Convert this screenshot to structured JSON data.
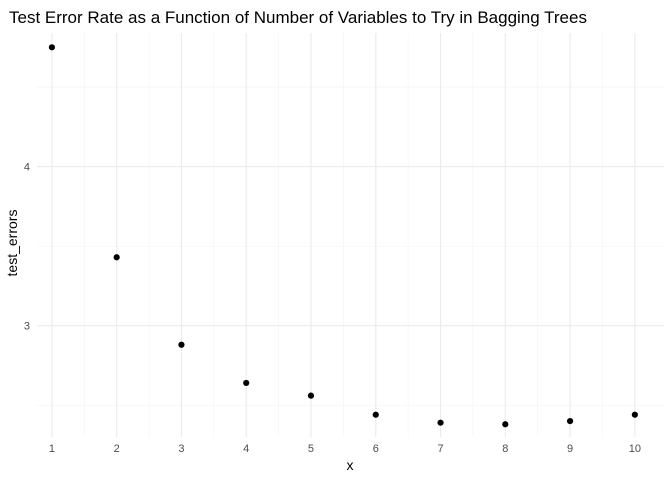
{
  "chart_data": {
    "type": "scatter",
    "title": "Test Error Rate as a Function of Number of Variables to Try in Bagging Trees",
    "xlabel": "x",
    "ylabel": "test_errors",
    "x": [
      1,
      2,
      3,
      4,
      5,
      6,
      7,
      8,
      9,
      10
    ],
    "y": [
      4.75,
      3.43,
      2.88,
      2.64,
      2.56,
      2.44,
      2.39,
      2.38,
      2.4,
      2.44
    ],
    "xlim": [
      0.77,
      10.45
    ],
    "ylim": [
      2.3,
      4.84
    ],
    "x_ticks": [
      1,
      2,
      3,
      4,
      5,
      6,
      7,
      8,
      9,
      10
    ],
    "x_tick_labels": [
      "1",
      "2",
      "3",
      "4",
      "5",
      "6",
      "7",
      "8",
      "9",
      "10"
    ],
    "y_ticks": [
      3,
      4
    ],
    "y_tick_labels": [
      "3",
      "4"
    ],
    "y_minor_ticks": [
      2.5,
      3.5,
      4.5
    ],
    "grid": true,
    "point_color": "#000000",
    "grid_color": "#ebebeb"
  }
}
